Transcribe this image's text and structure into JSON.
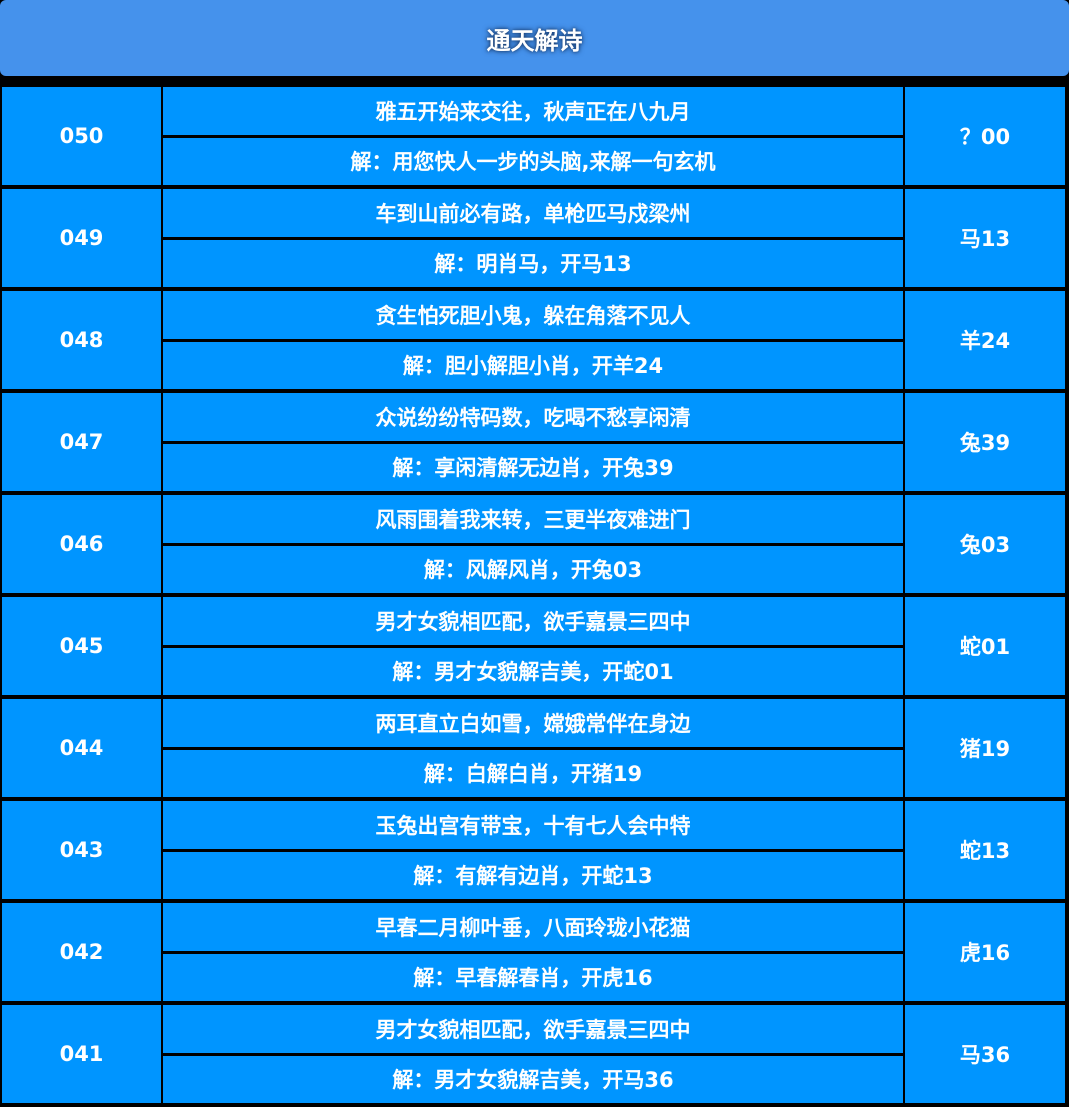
{
  "title": "通天解诗",
  "rows": [
    {
      "issue": "050",
      "poem": "雅五开始来交往，秋声正在八九月",
      "explain": "解：用您快人一步的头脑,来解一句玄机",
      "result": "？00"
    },
    {
      "issue": "049",
      "poem": "车到山前必有路，单枪匹马戍梁州",
      "explain": "解：明肖马，开马13",
      "result": "马13"
    },
    {
      "issue": "048",
      "poem": "贪生怕死胆小鬼，躲在角落不见人",
      "explain": "解：胆小解胆小肖，开羊24",
      "result": "羊24"
    },
    {
      "issue": "047",
      "poem": "众说纷纷特码数，吃喝不愁享闲清",
      "explain": "解：享闲清解无边肖，开兔39",
      "result": "兔39"
    },
    {
      "issue": "046",
      "poem": "风雨围着我来转，三更半夜难进门",
      "explain": "解：风解风肖，开兔03",
      "result": "兔03"
    },
    {
      "issue": "045",
      "poem": "男才女貌相匹配，欲手嘉景三四中",
      "explain": "解：男才女貌解吉美，开蛇01",
      "result": "蛇01"
    },
    {
      "issue": "044",
      "poem": "两耳直立白如雪，嫦娥常伴在身边",
      "explain": "解：白解白肖，开猪19",
      "result": "猪19"
    },
    {
      "issue": "043",
      "poem": "玉兔出宫有带宝，十有七人会中特",
      "explain": "解：有解有边肖，开蛇13",
      "result": "蛇13"
    },
    {
      "issue": "042",
      "poem": "早春二月柳叶垂，八面玲珑小花猫",
      "explain": "解：早春解春肖，开虎16",
      "result": "虎16"
    },
    {
      "issue": "041",
      "poem": "男才女貌相匹配，欲手嘉景三四中",
      "explain": "解：男才女貌解吉美，开马36",
      "result": "马36"
    }
  ]
}
